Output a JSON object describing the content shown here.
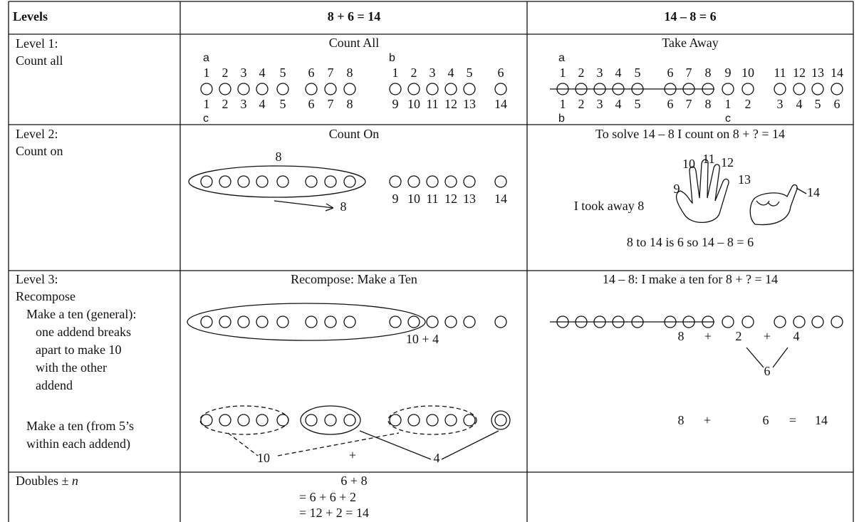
{
  "table": {
    "headers": [
      "Levels",
      "8 + 6 = 14",
      "14 – 8 = 6"
    ],
    "rows": [
      {
        "level": [
          "Level 1:",
          "Count all"
        ],
        "add": {
          "title": "Count All",
          "a": "a",
          "a_top": [
            "1",
            "2",
            "3",
            "4",
            "5",
            "6",
            "7",
            "8"
          ],
          "a_bottom": [
            "1",
            "2",
            "3",
            "4",
            "5",
            "6",
            "7",
            "8"
          ],
          "c": "c",
          "b": "b",
          "b_top": [
            "1",
            "2",
            "3",
            "4",
            "5",
            "6"
          ],
          "b_bottom": [
            "9",
            "10",
            "11",
            "12",
            "13",
            "14"
          ]
        },
        "sub": {
          "title": "Take Away",
          "a": "a",
          "top": [
            "1",
            "2",
            "3",
            "4",
            "5",
            "6",
            "7",
            "8",
            "9",
            "10",
            "11",
            "12",
            "13",
            "14"
          ],
          "bottom": [
            "1",
            "2",
            "3",
            "4",
            "5",
            "6",
            "7",
            "8",
            "1",
            "2",
            "3",
            "4",
            "5",
            "6"
          ],
          "b": "b",
          "c": "c"
        }
      },
      {
        "level": [
          "Level 2:",
          "Count on"
        ],
        "add": {
          "title": "Count On",
          "above": "8",
          "arrow_label": "8",
          "right_labels": [
            "9",
            "10",
            "11",
            "12",
            "13",
            "14"
          ]
        },
        "sub": {
          "title": "To solve 14 – 8 I count on 8 + ? = 14",
          "hand_labels": [
            "10",
            "11",
            "12",
            "13",
            "9",
            "14"
          ],
          "took": "I took away 8",
          "conclusion": "8 to 14 is 6 so 14 – 8 = 6"
        }
      },
      {
        "level": [
          "Level 3:",
          "Recompose"
        ],
        "general": [
          "Make a ten (general):",
          "one addend breaks",
          "apart to make 10",
          "with the other",
          "addend"
        ],
        "fives": [
          "Make a ten (from 5’s",
          "within each addend)"
        ],
        "add": {
          "title": "Recompose: Make a Ten",
          "label": "10 + 4",
          "bottom_labels": [
            "10",
            "+",
            "4"
          ]
        },
        "sub": {
          "title": "14 – 8: I make a ten for 8 + ? = 14",
          "decomposition": [
            "8",
            "+",
            "2",
            "+",
            "4"
          ],
          "sum": "6",
          "equation": [
            "8",
            "+",
            "6",
            "=",
            "14"
          ]
        }
      },
      {
        "level": "Doubles ±",
        "level_var": "n",
        "add": {
          "lines": [
            "6 + 8",
            "= 6 + 6 + 2",
            "=  12  + 2 = 14"
          ]
        }
      }
    ]
  }
}
